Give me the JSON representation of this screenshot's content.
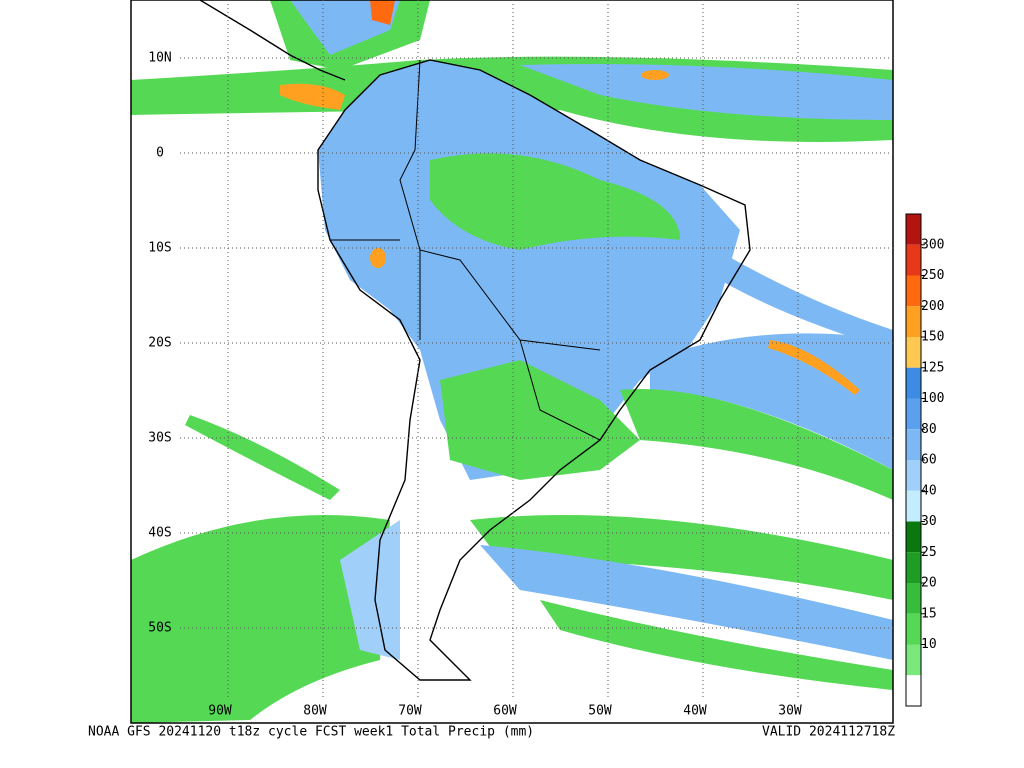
{
  "map": {
    "caption": "NOAA GFS 20241120 t18z cycle FCST week1 Total Precip (mm)",
    "valid": "VALID 2024112718Z",
    "latitude_labels": [
      "10N",
      "0",
      "10S",
      "20S",
      "30S",
      "40S",
      "50S"
    ],
    "longitude_labels": [
      "90W",
      "80W",
      "70W",
      "60W",
      "50W",
      "40W",
      "30W"
    ],
    "colorbar": {
      "labels": [
        300,
        250,
        200,
        150,
        125,
        100,
        80,
        60,
        40,
        30,
        25,
        20,
        15,
        10
      ],
      "colors": [
        "#b4140f",
        "#e8381a",
        "#ff6a10",
        "#ffa020",
        "#ffc850",
        "#3c8ce6",
        "#5aa0ee",
        "#7cb8f4",
        "#a0d0fa",
        "#c4ecff",
        "#0a780f",
        "#1e9c23",
        "#37bd3c",
        "#55d955",
        "#7ae87a",
        "#ffffff"
      ]
    }
  }
}
